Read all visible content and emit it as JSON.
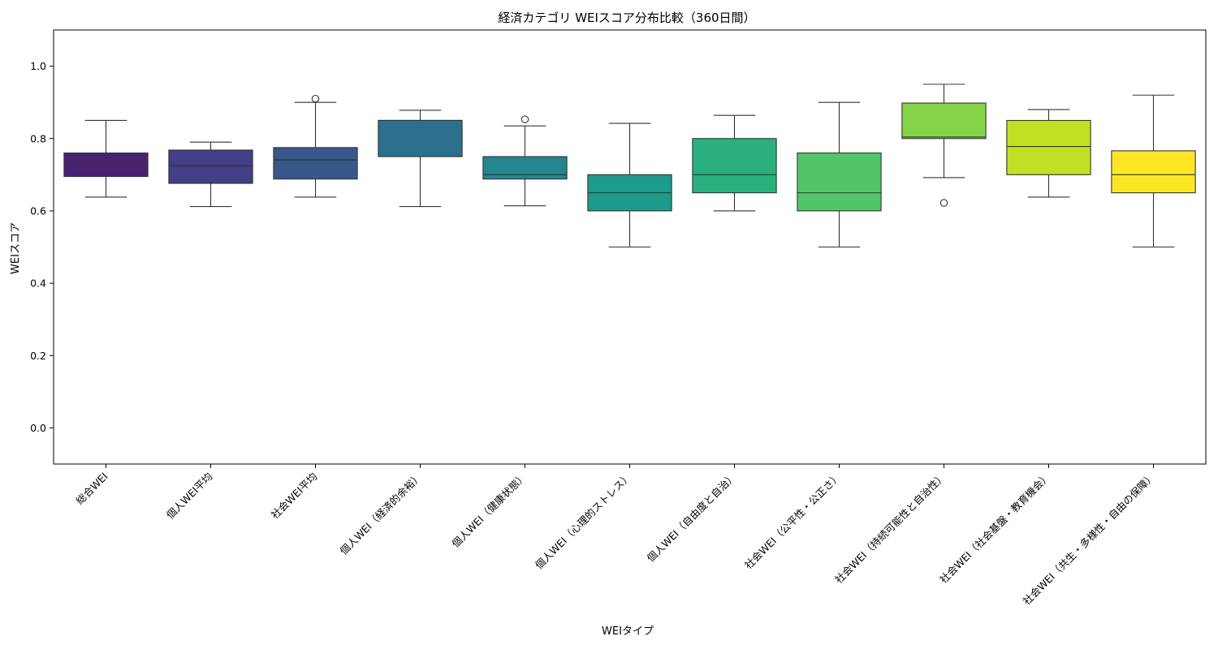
{
  "chart_data": {
    "type": "box",
    "title": "経済カテゴリ WEIスコア分布比較（360日間）",
    "xlabel": "WEIタイプ",
    "ylabel": "WEIスコア",
    "ylim": [
      -0.1,
      1.1
    ],
    "yticks": [
      "0.0",
      "0.2",
      "0.4",
      "0.6",
      "0.8",
      "1.0"
    ],
    "grid": false,
    "legend": "none",
    "categories": [
      "総合WEI",
      "個人WEI平均",
      "社会WEI平均",
      "個人WEI（経済的余裕）",
      "個人WEI（健康状態）",
      "個人WEI（心理的ストレス）",
      "個人WEI（自由度と自治）",
      "社会WEI（公平性・公正さ）",
      "社会WEI（持続可能性と自治性）",
      "社会WEI（社会基盤・教育機会）",
      "社会WEI（共生・多様性・自由の保障）"
    ],
    "boxes": [
      {
        "whisker_low": 0.638,
        "q1": 0.695,
        "median": 0.732,
        "q3": 0.76,
        "whisker_high": 0.85,
        "outliers": []
      },
      {
        "whisker_low": 0.612,
        "q1": 0.676,
        "median": 0.725,
        "q3": 0.768,
        "whisker_high": 0.79,
        "outliers": []
      },
      {
        "whisker_low": 0.638,
        "q1": 0.688,
        "median": 0.741,
        "q3": 0.775,
        "whisker_high": 0.9,
        "outliers": [
          0.91
        ]
      },
      {
        "whisker_low": 0.612,
        "q1": 0.75,
        "median": 0.85,
        "q3": 0.85,
        "whisker_high": 0.878,
        "outliers": []
      },
      {
        "whisker_low": 0.614,
        "q1": 0.688,
        "median": 0.7,
        "q3": 0.75,
        "whisker_high": 0.835,
        "outliers": [
          0.853
        ]
      },
      {
        "whisker_low": 0.5,
        "q1": 0.6,
        "median": 0.65,
        "q3": 0.7,
        "whisker_high": 0.842,
        "outliers": []
      },
      {
        "whisker_low": 0.6,
        "q1": 0.65,
        "median": 0.7,
        "q3": 0.8,
        "whisker_high": 0.864,
        "outliers": []
      },
      {
        "whisker_low": 0.5,
        "q1": 0.6,
        "median": 0.65,
        "q3": 0.76,
        "whisker_high": 0.9,
        "outliers": []
      },
      {
        "whisker_low": 0.692,
        "q1": 0.8,
        "median": 0.804,
        "q3": 0.898,
        "whisker_high": 0.95,
        "outliers": [
          0.622
        ]
      },
      {
        "whisker_low": 0.638,
        "q1": 0.7,
        "median": 0.778,
        "q3": 0.85,
        "whisker_high": 0.88,
        "outliers": []
      },
      {
        "whisker_low": 0.5,
        "q1": 0.65,
        "median": 0.7,
        "q3": 0.766,
        "whisker_high": 0.92,
        "outliers": []
      }
    ],
    "colors": [
      "#482173",
      "#433e85",
      "#38588c",
      "#2d708e",
      "#25858e",
      "#1e9b8a",
      "#2ab07f",
      "#52c569",
      "#86d549",
      "#c2df23",
      "#fde725"
    ]
  }
}
